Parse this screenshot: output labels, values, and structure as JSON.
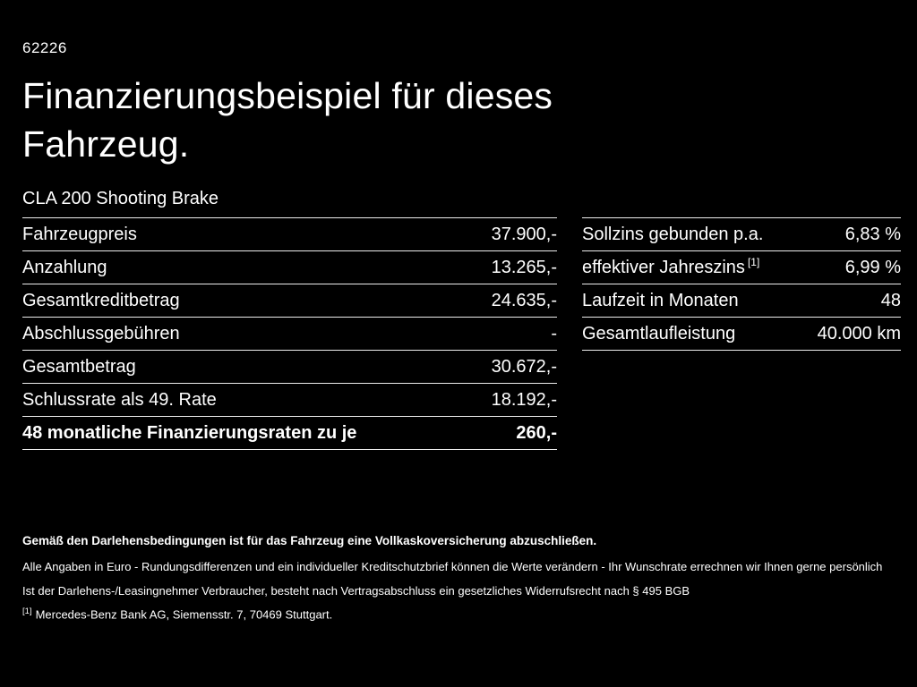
{
  "page_id": "62226",
  "title_line1": "Finanzierungsbeispiel für dieses",
  "title_line2": "Fahrzeug.",
  "model": "CLA 200 Shooting Brake",
  "left_table": {
    "rows": [
      {
        "label": "Fahrzeugpreis",
        "value": "37.900,-",
        "bold": false
      },
      {
        "label": "Anzahlung",
        "value": "13.265,-",
        "bold": false
      },
      {
        "label": "Gesamtkreditbetrag",
        "value": "24.635,-",
        "bold": false
      },
      {
        "label": "Abschlussgebühren",
        "value": "-",
        "bold": false
      },
      {
        "label": "Gesamtbetrag",
        "value": "30.672,-",
        "bold": false
      },
      {
        "label": "Schlussrate als 49. Rate",
        "value": "18.192,-",
        "bold": false
      },
      {
        "label": "48 monatliche Finanzierungsraten zu je",
        "value": "260,-",
        "bold": true
      }
    ]
  },
  "right_table": {
    "rows": [
      {
        "label": "Sollzins gebunden p.a.",
        "value": "6,83 %",
        "sup": "",
        "bold": false
      },
      {
        "label": "effektiver Jahreszins",
        "sup": "[1]",
        "value": "6,99 %",
        "bold": false
      },
      {
        "label": "Laufzeit in Monaten",
        "value": "48",
        "sup": "",
        "bold": false
      },
      {
        "label": "Gesamtlaufleistung",
        "value": "40.000 km",
        "sup": "",
        "bold": false
      }
    ]
  },
  "footer": {
    "bold_note": "Gemäß den Darlehensbedingungen ist für das Fahrzeug eine Vollkaskoversicherung abzuschließen.",
    "note1": "Alle Angaben in Euro - Rundungsdifferenzen und ein individueller Kreditschutzbrief können die Werte verändern - Ihr Wunschrate errechnen wir Ihnen gerne persönlich",
    "note2": "Ist der Darlehens-/Leasingnehmer Verbraucher, besteht nach Vertragsabschluss ein gesetzliches Widerrufsrecht nach § 495 BGB",
    "footnote_marker": "[1]",
    "footnote_text": "Mercedes-Benz Bank AG, Siemensstr. 7, 70469 Stuttgart."
  }
}
